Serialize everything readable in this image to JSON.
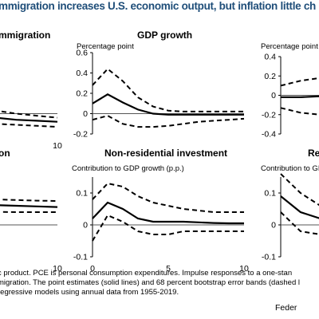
{
  "page_title": "mmigration increases U.S. economic output, but inflation little ch",
  "footnote_lines": [
    "c product. PCE is personal consumption expenditures.  Impulse responses to a one-stan",
    "migration. The point estimates (solid lines) and 68 percent bootstrap error bands (dashed l",
    "regressive models using annual data from 1955-2019."
  ],
  "source": "Feder",
  "colors": {
    "title": "#1f4e79",
    "lines": "#000000",
    "zero_line": "#555555"
  },
  "chart_data": [
    {
      "id": "immigration",
      "type": "line",
      "title": "mmigration",
      "ylabel": "",
      "x": [
        0,
        1,
        2,
        3,
        4,
        5,
        6,
        7,
        8,
        9,
        10
      ],
      "xticks": [
        10
      ],
      "ylim": [
        -0.2,
        0.6
      ],
      "series": [
        {
          "role": "estimate",
          "values": [
            0.13,
            0.09,
            0.06,
            0.04,
            0.02,
            0.0,
            -0.02,
            -0.04,
            -0.06,
            -0.07,
            -0.08
          ]
        },
        {
          "role": "upper_band",
          "values": [
            0.22,
            0.17,
            0.13,
            0.11,
            0.09,
            0.07,
            0.05,
            0.03,
            0.0,
            -0.02,
            -0.04
          ]
        },
        {
          "role": "lower_band",
          "values": [
            0.07,
            0.03,
            0.0,
            -0.02,
            -0.04,
            -0.06,
            -0.08,
            -0.1,
            -0.11,
            -0.12,
            -0.13
          ]
        }
      ]
    },
    {
      "id": "gdp-growth",
      "type": "line",
      "title": "GDP growth",
      "ylabel": "Percentage point",
      "x": [
        0,
        1,
        2,
        3,
        4,
        5,
        6,
        7,
        8,
        9,
        10
      ],
      "xticks": [],
      "yticks": [
        -0.2,
        0,
        0.2,
        0.4,
        0.6
      ],
      "ylim": [
        -0.2,
        0.6
      ],
      "series": [
        {
          "role": "estimate",
          "values": [
            0.1,
            0.19,
            0.11,
            0.04,
            0.0,
            -0.01,
            -0.01,
            -0.01,
            -0.01,
            -0.01,
            -0.01
          ]
        },
        {
          "role": "upper_band",
          "values": [
            0.28,
            0.44,
            0.32,
            0.16,
            0.07,
            0.03,
            0.02,
            0.02,
            0.02,
            0.02,
            0.02
          ]
        },
        {
          "role": "lower_band",
          "values": [
            -0.06,
            -0.02,
            -0.1,
            -0.13,
            -0.13,
            -0.12,
            -0.1,
            -0.08,
            -0.07,
            -0.06,
            -0.05
          ]
        }
      ]
    },
    {
      "id": "right-top",
      "type": "line",
      "title": "",
      "ylabel": "Percentage point",
      "x": [
        0,
        1,
        2,
        3,
        4,
        5,
        6,
        7,
        8,
        9,
        10
      ],
      "xticks": [],
      "yticks": [
        -0.4,
        -0.2,
        0,
        0.2,
        0.4
      ],
      "ylim": [
        -0.4,
        0.4
      ],
      "series": [
        {
          "role": "estimate",
          "values": [
            -0.02,
            -0.02,
            -0.01,
            0.0,
            0.01,
            0.02,
            0.03,
            0.03,
            0.03,
            0.03,
            0.03
          ]
        },
        {
          "role": "upper_band",
          "values": [
            0.1,
            0.15,
            0.18,
            0.2,
            0.21,
            0.22,
            0.22,
            0.22,
            0.22,
            0.22,
            0.22
          ]
        },
        {
          "role": "lower_band",
          "values": [
            -0.13,
            -0.18,
            -0.2,
            -0.2,
            -0.19,
            -0.18,
            -0.17,
            -0.16,
            -0.16,
            -0.16,
            -0.16
          ]
        }
      ]
    },
    {
      "id": "residential-left",
      "type": "line",
      "title": "on",
      "ylabel": "",
      "x": [
        0,
        1,
        2,
        3,
        4,
        5,
        6,
        7,
        8,
        9,
        10
      ],
      "xticks": [
        10
      ],
      "ylim": [
        -0.1,
        0.15
      ],
      "series": [
        {
          "role": "estimate",
          "values": [
            0.085,
            0.08,
            0.075,
            0.07,
            0.068,
            0.066,
            0.064,
            0.062,
            0.06,
            0.058,
            0.056
          ]
        },
        {
          "role": "upper_band",
          "values": [
            0.11,
            0.1,
            0.095,
            0.09,
            0.087,
            0.084,
            0.082,
            0.08,
            0.078,
            0.076,
            0.075
          ]
        },
        {
          "role": "lower_band",
          "values": [
            0.055,
            0.05,
            0.047,
            0.045,
            0.043,
            0.042,
            0.041,
            0.041,
            0.04,
            0.04,
            0.04
          ]
        }
      ]
    },
    {
      "id": "non-residential-investment",
      "type": "line",
      "title": "Non-residential investment",
      "ylabel": "Contribution  to GDP growth (p.p.)",
      "x": [
        0,
        1,
        2,
        3,
        4,
        5,
        6,
        7,
        8,
        9,
        10
      ],
      "xticks": [
        0,
        5,
        10
      ],
      "yticks": [
        -0.1,
        0,
        0.1
      ],
      "ylim": [
        -0.1,
        0.15
      ],
      "series": [
        {
          "role": "estimate",
          "values": [
            0.02,
            0.07,
            0.05,
            0.02,
            0.01,
            0.01,
            0.01,
            0.008,
            0.006,
            0.005,
            0.005
          ]
        },
        {
          "role": "upper_band",
          "values": [
            0.08,
            0.13,
            0.12,
            0.09,
            0.07,
            0.06,
            0.05,
            0.045,
            0.04,
            0.04,
            0.04
          ]
        },
        {
          "role": "lower_band",
          "values": [
            -0.05,
            0.03,
            0.01,
            -0.02,
            -0.03,
            -0.03,
            -0.02,
            -0.02,
            -0.02,
            -0.02,
            -0.02
          ]
        }
      ]
    },
    {
      "id": "right-bottom",
      "type": "line",
      "title": "Re",
      "ylabel": "Contribution  to GD",
      "x": [
        0,
        1,
        2,
        3,
        4,
        5,
        6,
        7,
        8,
        9,
        10
      ],
      "xticks": [],
      "yticks": [
        -0.1,
        0,
        0.1
      ],
      "ylim": [
        -0.1,
        0.15
      ],
      "series": [
        {
          "role": "estimate",
          "values": [
            0.09,
            0.04,
            0.02,
            0.01,
            0.01,
            0.01,
            0.01,
            0.01,
            0.01,
            0.01,
            0.01
          ]
        },
        {
          "role": "upper_band",
          "values": [
            0.16,
            0.1,
            0.06,
            0.05,
            0.04,
            0.04,
            0.04,
            0.04,
            0.04,
            0.04,
            0.04
          ]
        },
        {
          "role": "lower_band",
          "values": [
            0.04,
            -0.02,
            -0.03,
            -0.04,
            -0.04,
            -0.04,
            -0.04,
            -0.04,
            -0.04,
            -0.04,
            -0.04
          ]
        }
      ]
    }
  ]
}
